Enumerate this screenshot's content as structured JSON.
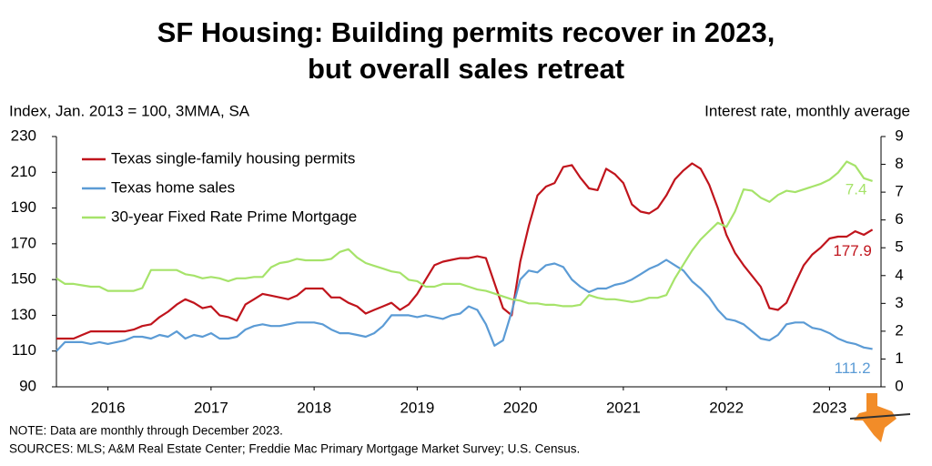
{
  "chart_data": {
    "type": "line",
    "title": [
      "SF Housing: Building permits recover in 2023,",
      "but overall sales retreat"
    ],
    "y_label": "Index, Jan. 2013 = 100, 3MMA, SA",
    "y2_label": "Interest rate, monthly average",
    "notes": [
      "NOTE: Data are monthly through December 2023.",
      "SOURCES: MLS; A&M Real Estate Center; Freddie Mac Primary Mortgage Market Survey; U.S. Census."
    ],
    "legend": "upper left",
    "xlim": [
      2016,
      2024
    ],
    "xticks": [
      {
        "value": 2016.5,
        "label": "2016"
      },
      {
        "value": 2017.5,
        "label": "2017"
      },
      {
        "value": 2018.5,
        "label": "2018"
      },
      {
        "value": 2019.5,
        "label": "2019"
      },
      {
        "value": 2020.5,
        "label": "2020"
      },
      {
        "value": 2021.5,
        "label": "2021"
      },
      {
        "value": 2022.5,
        "label": "2022"
      },
      {
        "value": 2023.5,
        "label": "2023"
      }
    ],
    "ylim": [
      90,
      230
    ],
    "yticks": [
      90,
      110,
      130,
      150,
      170,
      190,
      210,
      230
    ],
    "y2lim": [
      0,
      9
    ],
    "y2ticks": [
      0,
      1,
      2,
      3,
      4,
      5,
      6,
      7,
      8,
      9
    ],
    "x": [
      2016,
      2016.083,
      2016.167,
      2016.25,
      2016.333,
      2016.417,
      2016.5,
      2016.583,
      2016.667,
      2016.75,
      2016.833,
      2016.917,
      2017,
      2017.083,
      2017.167,
      2017.25,
      2017.333,
      2017.417,
      2017.5,
      2017.583,
      2017.667,
      2017.75,
      2017.833,
      2017.917,
      2018,
      2018.083,
      2018.167,
      2018.25,
      2018.333,
      2018.417,
      2018.5,
      2018.583,
      2018.667,
      2018.75,
      2018.833,
      2018.917,
      2019,
      2019.083,
      2019.167,
      2019.25,
      2019.333,
      2019.417,
      2019.5,
      2019.583,
      2019.667,
      2019.75,
      2019.833,
      2019.917,
      2020,
      2020.083,
      2020.167,
      2020.25,
      2020.333,
      2020.417,
      2020.5,
      2020.583,
      2020.667,
      2020.75,
      2020.833,
      2020.917,
      2021,
      2021.083,
      2021.167,
      2021.25,
      2021.333,
      2021.417,
      2021.5,
      2021.583,
      2021.667,
      2021.75,
      2021.833,
      2021.917,
      2022,
      2022.083,
      2022.167,
      2022.25,
      2022.333,
      2022.417,
      2022.5,
      2022.583,
      2022.667,
      2022.75,
      2022.833,
      2022.917,
      2023,
      2023.083,
      2023.167,
      2023.25,
      2023.333,
      2023.417,
      2023.5,
      2023.583,
      2023.667,
      2023.75,
      2023.833,
      2023.917
    ],
    "series": [
      {
        "name": "Texas single-family housing permits",
        "color": "#c0141c",
        "axis": "y",
        "values": [
          117,
          117,
          117,
          119,
          121,
          121,
          121,
          121,
          121,
          122,
          124,
          125,
          129,
          132,
          136,
          139,
          137,
          134,
          135,
          130,
          129,
          127,
          136,
          139,
          142,
          141,
          140,
          139,
          141,
          145,
          145,
          145,
          140,
          140,
          137,
          135,
          131,
          133,
          135,
          137,
          133,
          136,
          142,
          150,
          158,
          160,
          161,
          162,
          162,
          163,
          162,
          148,
          134,
          130,
          160,
          180,
          197,
          202,
          204,
          213,
          214,
          207,
          201,
          200,
          212,
          209,
          204,
          192,
          188,
          187,
          190,
          197,
          206,
          211,
          215,
          212,
          203,
          190,
          175,
          165,
          158,
          152,
          146,
          134,
          133,
          137,
          148,
          158,
          164,
          168,
          173,
          174,
          174,
          177,
          175,
          177.9
        ]
      },
      {
        "name": "Texas home sales",
        "color": "#5b9bd5",
        "axis": "y",
        "values": [
          110,
          115,
          115,
          115,
          114,
          115,
          114,
          115,
          116,
          118,
          118,
          117,
          119,
          118,
          121,
          117,
          119,
          118,
          120,
          117,
          117,
          118,
          122,
          124,
          125,
          124,
          124,
          125,
          126,
          126,
          126,
          125,
          122,
          120,
          120,
          119,
          118,
          120,
          124,
          130,
          130,
          130,
          129,
          130,
          129,
          128,
          130,
          131,
          135,
          133,
          125,
          113,
          116,
          132,
          150,
          155,
          154,
          158,
          159,
          157,
          150,
          146,
          143,
          145,
          145,
          147,
          148,
          150,
          153,
          156,
          158,
          161,
          158,
          155,
          149,
          145,
          140,
          133,
          128,
          127,
          125,
          121,
          117,
          116,
          119,
          125,
          126,
          126,
          123,
          122,
          120,
          117,
          115,
          114,
          112,
          111.2
        ]
      },
      {
        "name": "30-year Fixed Rate Prime Mortgage",
        "color": "#a6e36a",
        "axis": "y2",
        "values": [
          3.9,
          3.7,
          3.7,
          3.65,
          3.6,
          3.6,
          3.45,
          3.45,
          3.45,
          3.45,
          3.55,
          4.2,
          4.2,
          4.2,
          4.2,
          4.05,
          4.0,
          3.9,
          3.95,
          3.9,
          3.8,
          3.9,
          3.9,
          3.95,
          3.95,
          4.3,
          4.45,
          4.5,
          4.6,
          4.55,
          4.55,
          4.55,
          4.6,
          4.85,
          4.95,
          4.65,
          4.45,
          4.35,
          4.25,
          4.15,
          4.1,
          3.85,
          3.8,
          3.6,
          3.6,
          3.7,
          3.7,
          3.7,
          3.6,
          3.5,
          3.45,
          3.35,
          3.25,
          3.15,
          3.1,
          3.0,
          3.0,
          2.95,
          2.95,
          2.9,
          2.9,
          2.95,
          3.3,
          3.2,
          3.15,
          3.15,
          3.1,
          3.05,
          3.1,
          3.2,
          3.2,
          3.3,
          3.9,
          4.4,
          4.9,
          5.3,
          5.6,
          5.9,
          5.75,
          6.3,
          7.1,
          7.05,
          6.8,
          6.65,
          6.9,
          7.05,
          7.0,
          7.1,
          7.2,
          7.3,
          7.45,
          7.7,
          8.1,
          7.95,
          7.5,
          7.4
        ]
      }
    ]
  }
}
